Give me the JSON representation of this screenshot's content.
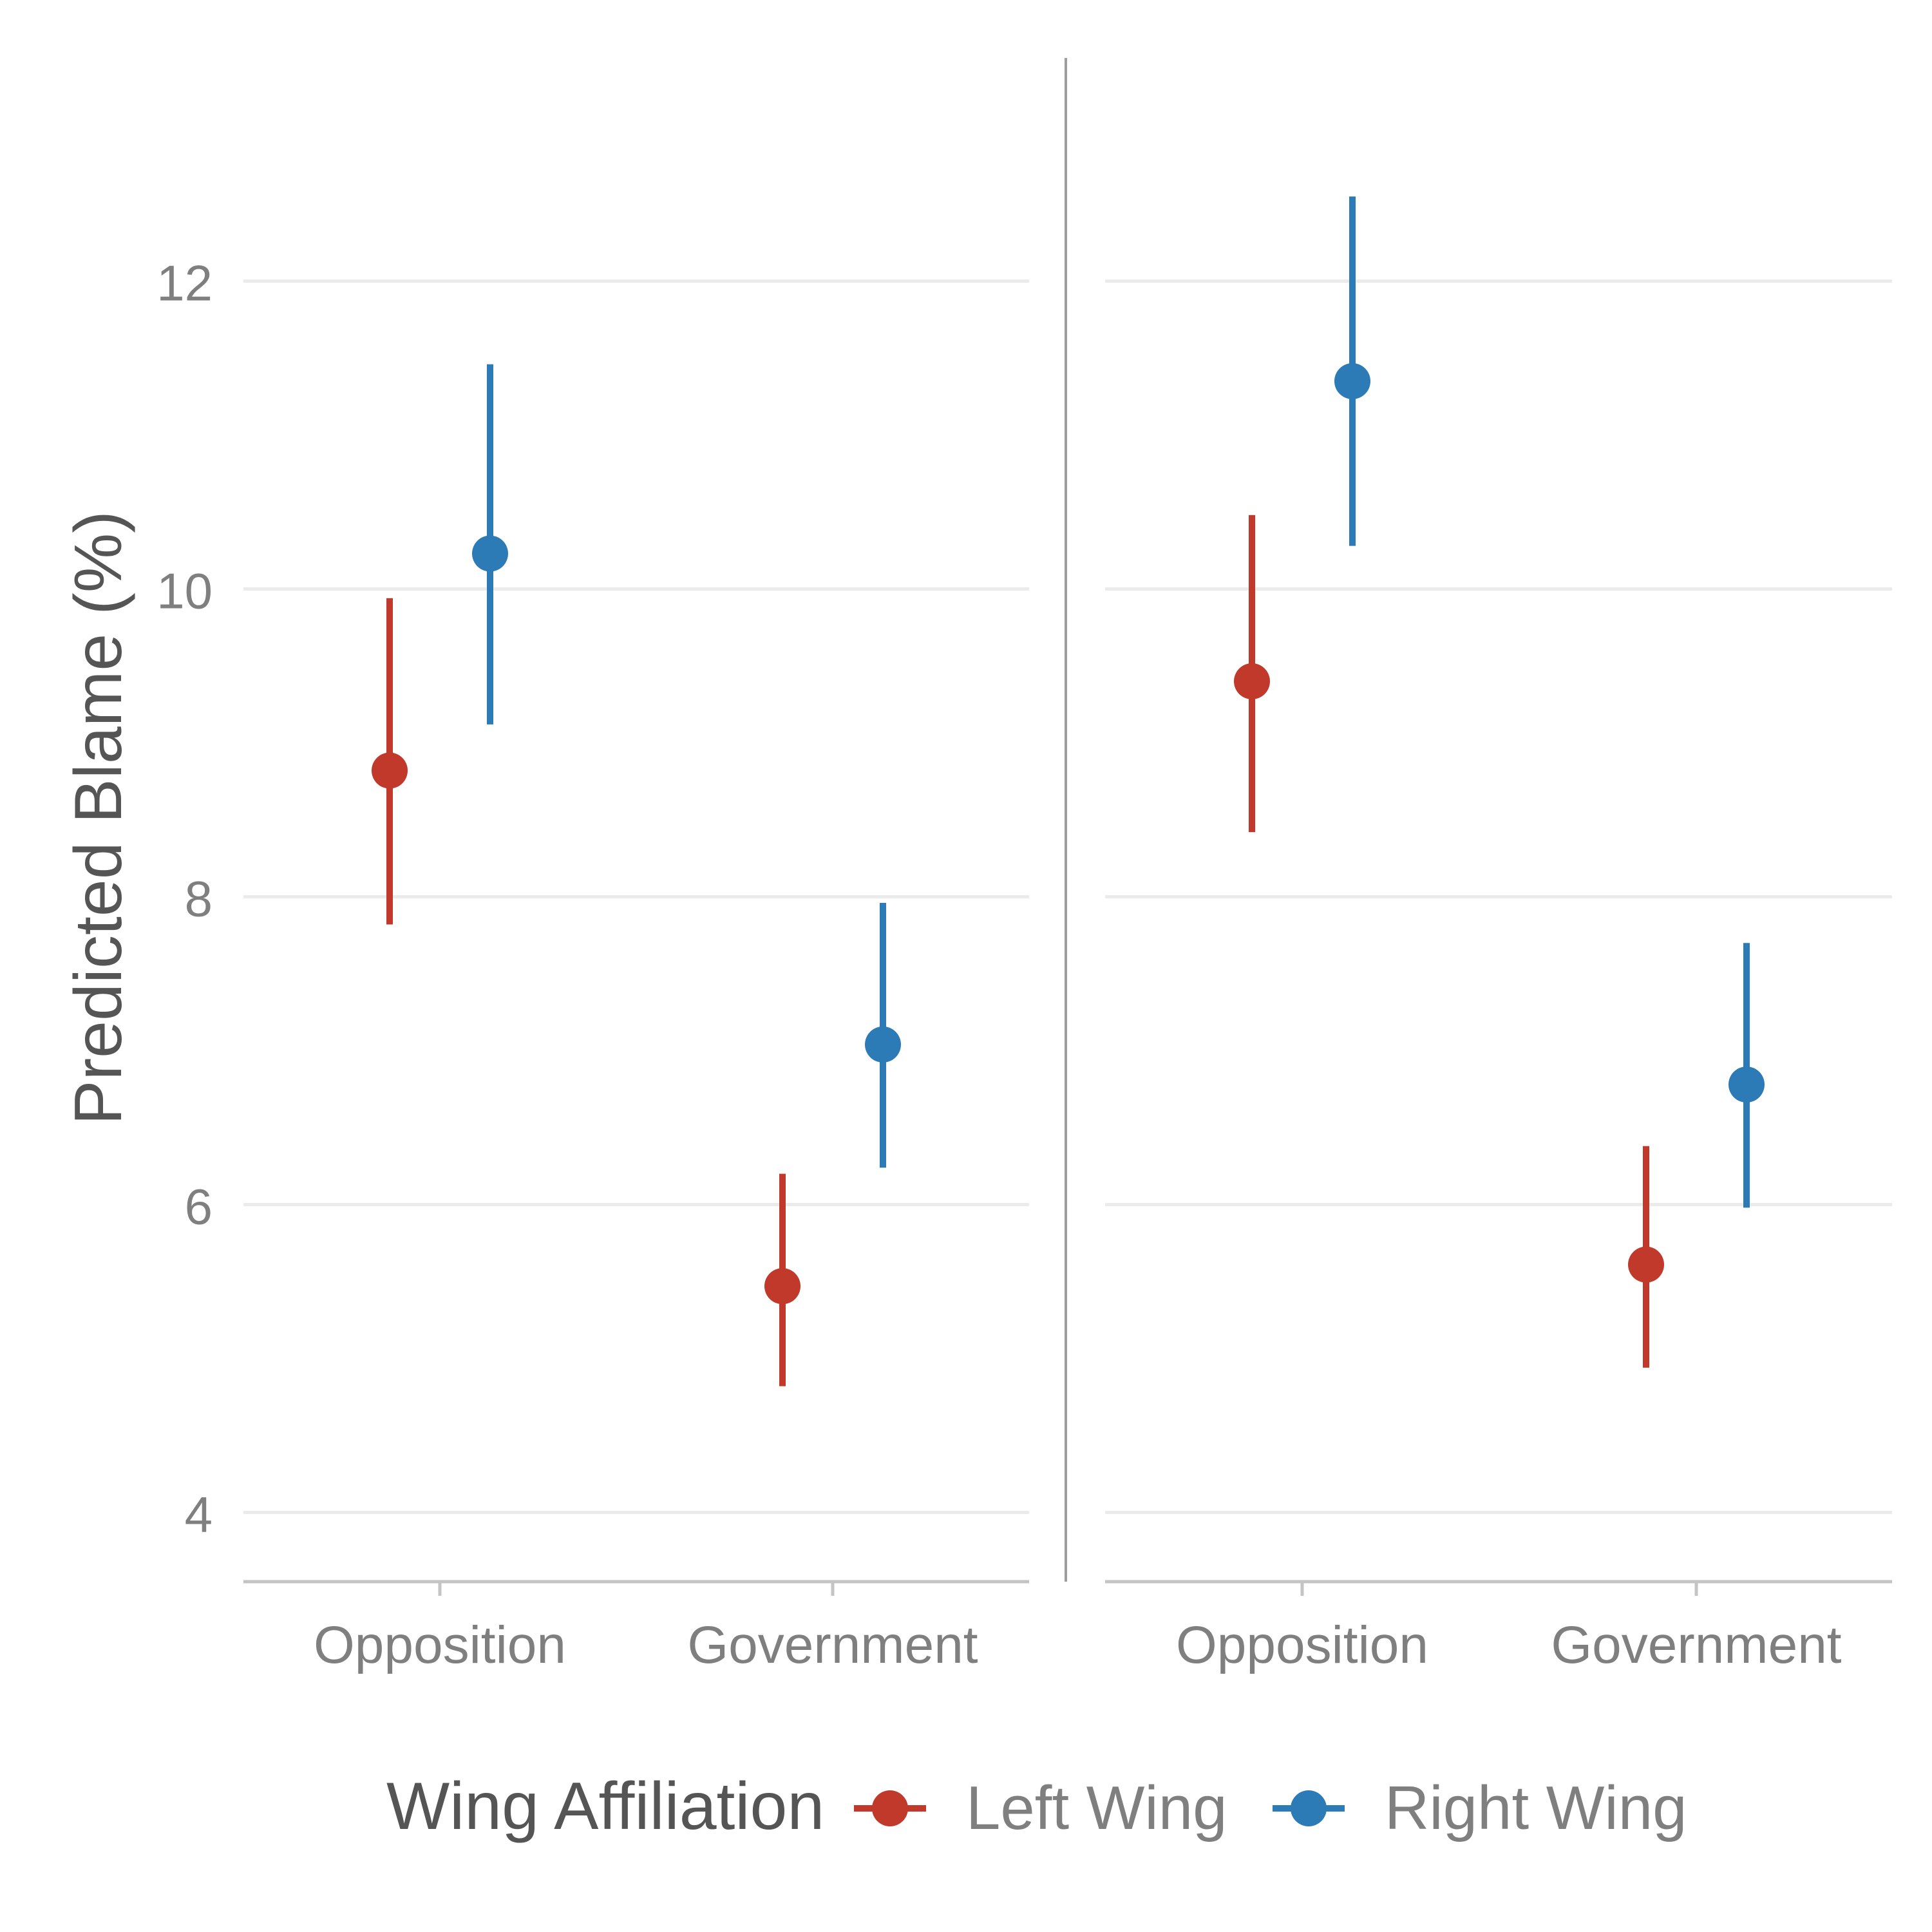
{
  "chart_data": {
    "type": "scatter",
    "subtype": "point-range (estimate with interval), two facets",
    "title": "",
    "ylabel": "Predicted Blame (%)",
    "xlabel": "",
    "ylim": [
      3.55,
      13.45
    ],
    "yticks": [
      4,
      6,
      8,
      10,
      12
    ],
    "grid": "horizontal major",
    "categories": [
      "Opposition",
      "Government"
    ],
    "legend": {
      "title": "Wing Affiliation",
      "position": "bottom",
      "entries": [
        {
          "name": "Left Wing",
          "color": "#c0392b"
        },
        {
          "name": "Right Wing",
          "color": "#2c7bb6"
        }
      ]
    },
    "facets": [
      {
        "series": [
          {
            "name": "Left Wing",
            "color": "#c0392b",
            "points": [
              {
                "x": "Opposition",
                "y": 8.82,
                "lower": 7.82,
                "upper": 9.94
              },
              {
                "x": "Government",
                "y": 5.47,
                "lower": 4.82,
                "upper": 6.2
              }
            ]
          },
          {
            "name": "Right Wing",
            "color": "#2c7bb6",
            "points": [
              {
                "x": "Opposition",
                "y": 10.23,
                "lower": 9.12,
                "upper": 11.46
              },
              {
                "x": "Government",
                "y": 7.04,
                "lower": 6.24,
                "upper": 7.96
              }
            ]
          }
        ]
      },
      {
        "series": [
          {
            "name": "Left Wing",
            "color": "#c0392b",
            "points": [
              {
                "x": "Opposition",
                "y": 9.4,
                "lower": 8.42,
                "upper": 10.48
              },
              {
                "x": "Government",
                "y": 5.61,
                "lower": 4.94,
                "upper": 6.38
              }
            ]
          },
          {
            "name": "Right Wing",
            "color": "#2c7bb6",
            "points": [
              {
                "x": "Opposition",
                "y": 11.35,
                "lower": 10.28,
                "upper": 12.55
              },
              {
                "x": "Government",
                "y": 6.78,
                "lower": 5.98,
                "upper": 7.7
              }
            ]
          }
        ]
      }
    ]
  }
}
